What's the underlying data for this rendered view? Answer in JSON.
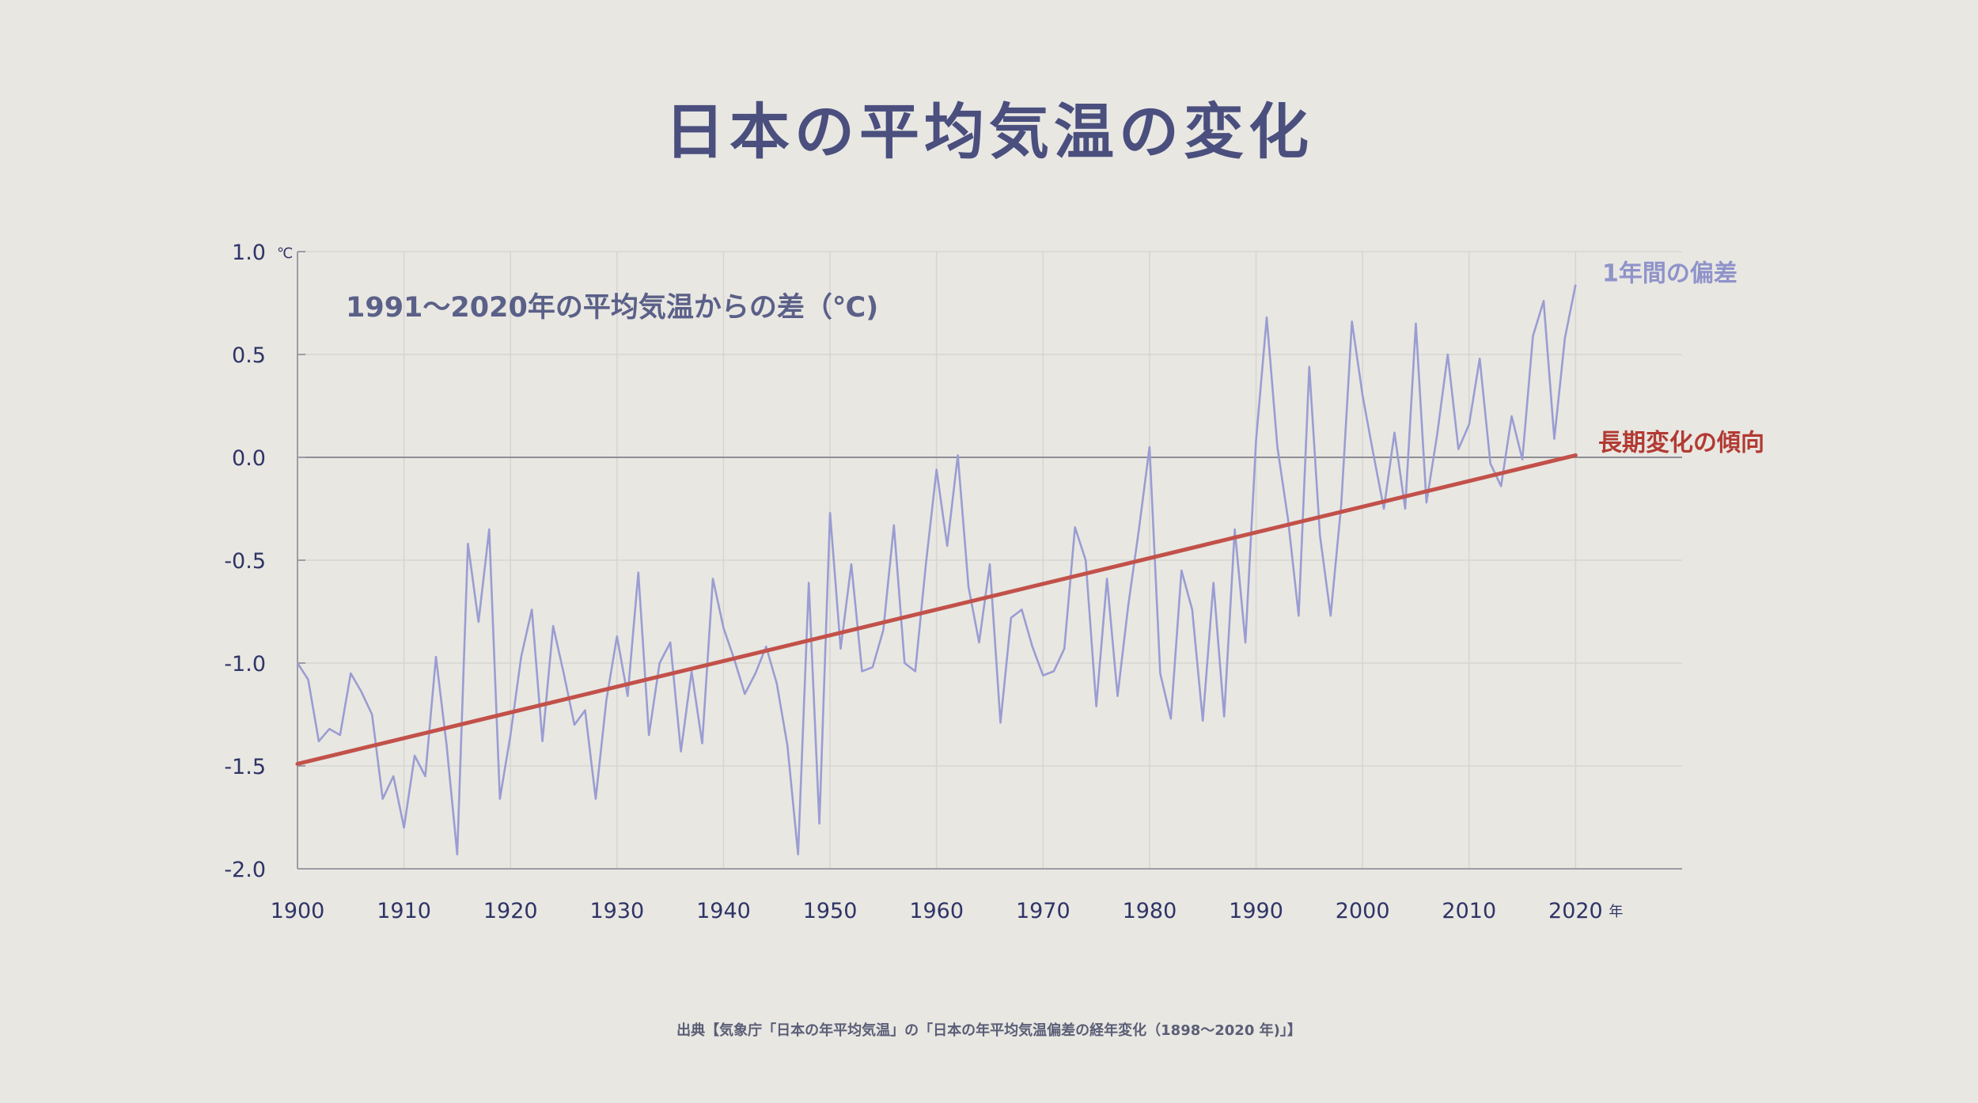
{
  "title": "日本の平均気温の変化",
  "source": "出典【気象庁「日本の年平均気温」の「日本の年平均気温偏差の経年変化（1898〜2020 年)」】",
  "chart_data": {
    "type": "line",
    "title": "日本の平均気温の変化",
    "annotation": "1991〜2020年の平均気温からの差（℃)",
    "y_unit": "℃",
    "x_unit": "年",
    "xlim": [
      1900,
      2030
    ],
    "ylim": [
      -2.0,
      1.0
    ],
    "x_ticks": [
      1900,
      1910,
      1920,
      1930,
      1940,
      1950,
      1960,
      1970,
      1980,
      1990,
      2000,
      2010,
      2020
    ],
    "x_tick_labels": [
      "1900",
      "1910",
      "1920",
      "1930",
      "1940",
      "1950",
      "1960",
      "1970",
      "1980",
      "1990",
      "2000",
      "2010",
      "2020"
    ],
    "y_ticks": [
      1.0,
      0.5,
      0.0,
      -0.5,
      -1.0,
      -1.5,
      -2.0
    ],
    "y_tick_labels": [
      "1.0",
      "0.5",
      "0.0",
      "-0.5",
      "-1.0",
      "-1.5",
      "-2.0"
    ],
    "grid": true,
    "zero_line": true,
    "colors": {
      "annual": "#9a9dd2",
      "trend": "#c2514a",
      "axis": "#9c9ca4",
      "grid": "#d6d5d2"
    },
    "series": [
      {
        "name": "1年間の偏差",
        "x": [
          1900,
          1901,
          1902,
          1903,
          1904,
          1905,
          1906,
          1907,
          1908,
          1909,
          1910,
          1911,
          1912,
          1913,
          1914,
          1915,
          1916,
          1917,
          1918,
          1919,
          1920,
          1921,
          1922,
          1923,
          1924,
          1925,
          1926,
          1927,
          1928,
          1929,
          1930,
          1931,
          1932,
          1933,
          1934,
          1935,
          1936,
          1937,
          1938,
          1939,
          1940,
          1941,
          1942,
          1943,
          1944,
          1945,
          1946,
          1947,
          1948,
          1949,
          1950,
          1951,
          1952,
          1953,
          1954,
          1955,
          1956,
          1957,
          1958,
          1959,
          1960,
          1961,
          1962,
          1963,
          1964,
          1965,
          1966,
          1967,
          1968,
          1969,
          1970,
          1971,
          1972,
          1973,
          1974,
          1975,
          1976,
          1977,
          1978,
          1979,
          1980,
          1981,
          1982,
          1983,
          1984,
          1985,
          1986,
          1987,
          1988,
          1989,
          1990,
          1991,
          1992,
          1993,
          1994,
          1995,
          1996,
          1997,
          1998,
          1999,
          2000,
          2001,
          2002,
          2003,
          2004,
          2005,
          2006,
          2007,
          2008,
          2009,
          2010,
          2011,
          2012,
          2013,
          2014,
          2015,
          2016,
          2017,
          2018,
          2019,
          2020
        ],
        "values": [
          -1.0,
          -1.08,
          -1.38,
          -1.32,
          -1.35,
          -1.05,
          -1.14,
          -1.25,
          -1.66,
          -1.55,
          -1.8,
          -1.45,
          -1.55,
          -0.97,
          -1.4,
          -1.93,
          -0.42,
          -0.8,
          -0.35,
          -1.66,
          -1.35,
          -0.97,
          -0.74,
          -1.38,
          -0.82,
          -1.05,
          -1.3,
          -1.23,
          -1.66,
          -1.18,
          -0.87,
          -1.16,
          -0.56,
          -1.35,
          -1.0,
          -0.9,
          -1.43,
          -1.04,
          -1.39,
          -0.59,
          -0.83,
          -0.98,
          -1.15,
          -1.05,
          -0.92,
          -1.1,
          -1.4,
          -1.93,
          -0.61,
          -1.78,
          -0.27,
          -0.93,
          -0.52,
          -1.04,
          -1.02,
          -0.84,
          -0.33,
          -1.0,
          -1.04,
          -0.52,
          -0.06,
          -0.43,
          0.01,
          -0.63,
          -0.9,
          -0.52,
          -1.29,
          -0.78,
          -0.74,
          -0.92,
          -1.06,
          -1.04,
          -0.93,
          -0.34,
          -0.5,
          -1.21,
          -0.59,
          -1.16,
          -0.72,
          -0.35,
          0.05,
          -1.05,
          -1.27,
          -0.55,
          -0.74,
          -1.28,
          -0.61,
          -1.26,
          -0.35,
          -0.9,
          0.08,
          0.68,
          0.05,
          -0.3,
          -0.77,
          0.44,
          -0.38,
          -0.77,
          -0.23,
          0.66,
          0.3,
          0.02,
          -0.25,
          0.12,
          -0.25,
          0.65,
          -0.22,
          0.11,
          0.5,
          0.04,
          0.16,
          0.48,
          -0.03,
          -0.14,
          0.2,
          -0.01,
          0.59,
          0.76,
          0.09,
          0.58,
          0.84
        ]
      },
      {
        "name": "長期変化の傾向",
        "type": "trend",
        "x": [
          1900,
          2020
        ],
        "values": [
          -1.49,
          0.01
        ]
      }
    ]
  }
}
